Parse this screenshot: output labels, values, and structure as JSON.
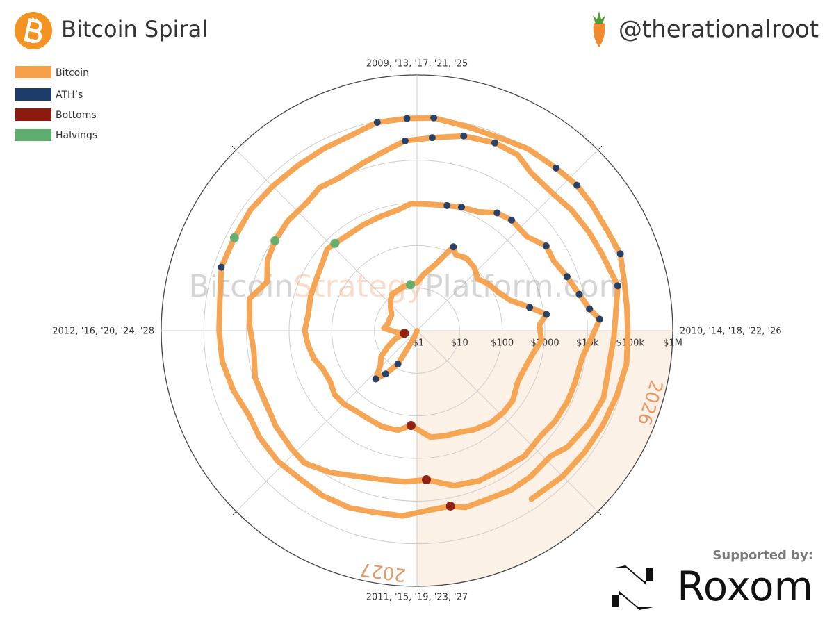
{
  "chart_data": {
    "type": "polar",
    "title": "Bitcoin Spiral",
    "author": "@therationalroot",
    "watermark": [
      "Bitcoin",
      "Strategy",
      "Platform.com"
    ],
    "sponsor": {
      "caption": "Supported by:",
      "name": "Roxom"
    },
    "r_scale": "log",
    "rlim": [
      1,
      1000000
    ],
    "rticks": [
      {
        "value": 1,
        "label": "$1"
      },
      {
        "value": 10,
        "label": "$10"
      },
      {
        "value": 100,
        "label": "$100"
      },
      {
        "value": 1000,
        "label": "$1000"
      },
      {
        "value": 10000,
        "label": "$10k"
      },
      {
        "value": 100000,
        "label": "$100k"
      },
      {
        "value": 1000000,
        "label": "$1M"
      }
    ],
    "xlim": [
      2009,
      2013
    ],
    "xticks": [
      {
        "value": 2009,
        "label": "2009, '13, '17, '21, '25"
      },
      {
        "value": 2010,
        "label": "2010, '14, '18, '22, '26"
      },
      {
        "value": 2011,
        "label": "2011, '15, '19, '23, '27"
      },
      {
        "value": 2012,
        "label": "2012, '16, '20, '24, '28"
      }
    ],
    "grid": true,
    "legend": "top-left",
    "highlight": {
      "x": [
        2026,
        2027
      ],
      "labels": [
        "2026",
        "2027"
      ],
      "color": "#fcf1e6",
      "label_color": "#e39a6a"
    },
    "series": [
      {
        "name": "Bitcoin",
        "color": "#f5a04b",
        "mode": "lines",
        "x": [
          2011.1,
          2011.25,
          2011.33,
          2011.4,
          2011.45,
          2011.52,
          2011.6,
          2011.68,
          2011.77,
          2011.87,
          2011.95,
          2012.05,
          2012.15,
          2012.25,
          2012.35,
          2012.45,
          2012.55,
          2012.62,
          2012.7,
          2012.8,
          2012.91,
          2013.0,
          2013.08,
          2013.17,
          2013.26,
          2013.3,
          2013.38,
          2013.47,
          2013.55,
          2013.63,
          2013.72,
          2013.8,
          2013.87,
          2013.92,
          2013.97,
          2014.05,
          2014.12,
          2014.22,
          2014.3,
          2014.4,
          2014.48,
          2014.57,
          2014.67,
          2014.75,
          2014.83,
          2014.92,
          2015.04,
          2015.12,
          2015.22,
          2015.32,
          2015.42,
          2015.5,
          2015.58,
          2015.66,
          2015.75,
          2015.83,
          2015.92,
          2016.0,
          2016.1,
          2016.2,
          2016.3,
          2016.42,
          2016.47,
          2016.52,
          2016.6,
          2016.7,
          2016.8,
          2016.9,
          2016.97,
          2017.05,
          2017.15,
          2017.22,
          2017.3,
          2017.38,
          2017.45,
          2017.55,
          2017.63,
          2017.7,
          2017.78,
          2017.86,
          2017.92,
          2017.96,
          2018.02,
          2018.1,
          2018.2,
          2018.28,
          2018.37,
          2018.45,
          2018.55,
          2018.65,
          2018.75,
          2018.85,
          2018.96,
          2019.05,
          2019.15,
          2019.25,
          2019.35,
          2019.45,
          2019.52,
          2019.62,
          2019.72,
          2019.82,
          2019.92,
          2020.02,
          2020.12,
          2020.2,
          2020.28,
          2020.36,
          2020.45,
          2020.55,
          2020.62,
          2020.7,
          2020.8,
          2020.88,
          2020.96,
          2021.05,
          2021.15,
          2021.25,
          2021.33,
          2021.4,
          2021.5,
          2021.58,
          2021.67,
          2021.75,
          2021.86,
          2021.93,
          2022.02,
          2022.12,
          2022.22,
          2022.32,
          2022.42,
          2022.48,
          2022.58,
          2022.66,
          2022.75,
          2022.83,
          2022.88,
          2022.96,
          2023.05,
          2023.15,
          2023.23,
          2023.33,
          2023.43,
          2023.52,
          2023.62,
          2023.7,
          2023.8,
          2023.9,
          2024.0,
          2024.1,
          2024.2,
          2024.3,
          2024.4,
          2024.5,
          2024.6,
          2024.7,
          2024.8,
          2024.88,
          2024.97,
          2025.05,
          2025.15,
          2025.27,
          2025.35,
          2025.45,
          2025.53,
          2025.6,
          2025.7,
          2025.77,
          2025.85,
          2025.93,
          2026.0,
          2026.1,
          2026.2,
          2026.3,
          2026.4,
          2026.5,
          2026.62
        ],
        "values": [
          1,
          1.5,
          8,
          18,
          31,
          15,
          11,
          6,
          3.5,
          2,
          3,
          6,
          5,
          5,
          5,
          6.5,
          9,
          11,
          11,
          12,
          12.3,
          13.5,
          22,
          40,
          140,
          100,
          115,
          100,
          75,
          100,
          130,
          200,
          500,
          1150,
          750,
          850,
          600,
          470,
          450,
          600,
          620,
          590,
          480,
          380,
          360,
          330,
          170,
          240,
          250,
          230,
          235,
          270,
          280,
          230,
          240,
          320,
          380,
          430,
          380,
          420,
          450,
          580,
          700,
          650,
          590,
          610,
          650,
          740,
          960,
          950,
          1050,
          1200,
          1350,
          2200,
          2600,
          2500,
          4200,
          4000,
          5500,
          8000,
          12000,
          19700,
          13000,
          8500,
          8000,
          8000,
          7500,
          6500,
          7500,
          6500,
          6500,
          5500,
          3200,
          3600,
          3900,
          5000,
          8000,
          12000,
          11000,
          10000,
          8500,
          9000,
          7200,
          8500,
          10000,
          5000,
          7500,
          8800,
          9500,
          9200,
          11500,
          10500,
          13500,
          18500,
          29000,
          35000,
          50000,
          59000,
          57000,
          37000,
          34000,
          40000,
          45000,
          50000,
          67000,
          50000,
          42000,
          38000,
          45000,
          38000,
          29000,
          20000,
          22000,
          22000,
          19500,
          20000,
          15500,
          16800,
          23000,
          24000,
          28000,
          29000,
          27000,
          30000,
          29000,
          26000,
          34000,
          42000,
          44000,
          48000,
          67000,
          64000,
          67000,
          62000,
          60000,
          63000,
          70000,
          95000,
          97000,
          102000,
          86000,
          85000,
          100000,
          105000,
          118000,
          115000,
          112000,
          126000,
          100000,
          90000,
          88000,
          95000,
          85000,
          78000,
          72000,
          68000,
          60000
        ]
      },
      {
        "name": "ATH’s",
        "color": "#1c3b69",
        "mode": "markers",
        "x": [
          2011.33,
          2011.4,
          2011.45,
          2013.26,
          2013.87,
          2013.92,
          2017.15,
          2017.22,
          2017.38,
          2017.45,
          2017.63,
          2017.78,
          2017.86,
          2017.92,
          2017.96,
          2020.96,
          2021.05,
          2021.15,
          2021.25,
          2021.86,
          2024.2,
          2024.88,
          2024.97,
          2025.05,
          2025.45,
          2025.53,
          2025.77
        ],
        "values": [
          8,
          18,
          31,
          140,
          500,
          1150,
          1050,
          1200,
          2200,
          2600,
          4200,
          5500,
          8000,
          12000,
          19700,
          29000,
          35000,
          50000,
          59000,
          67000,
          67000,
          95000,
          97000,
          102000,
          105000,
          118000,
          126000
        ]
      },
      {
        "name": "Bottoms",
        "color": "#8c1a0e",
        "mode": "markers",
        "x": [
          2011.87,
          2015.04,
          2018.96,
          2022.88
        ],
        "values": [
          2,
          170,
          3200,
          15500
        ]
      },
      {
        "name": "Halvings",
        "color": "#5fae70",
        "mode": "markers",
        "x": [
          2012.91,
          2016.52,
          2020.36,
          2024.3
        ],
        "values": [
          12.3,
          650,
          8800,
          64000
        ]
      }
    ]
  }
}
